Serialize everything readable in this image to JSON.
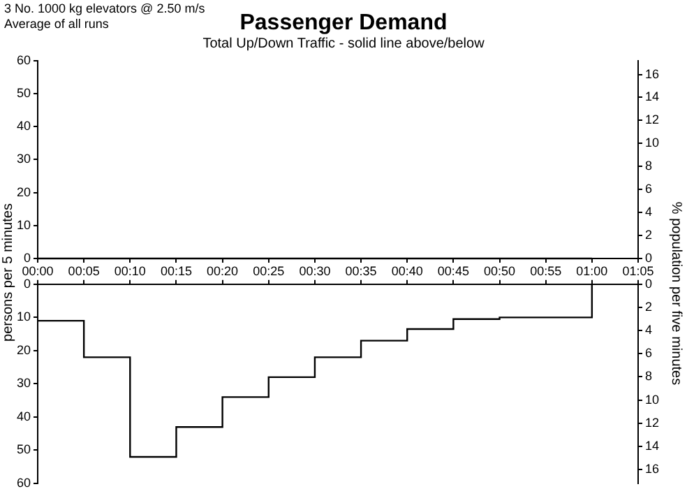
{
  "chart_data": [
    {
      "type": "step",
      "title": "Passenger Demand",
      "subtitle": "Total Up/Down Traffic - solid line above/below",
      "ylabel": "persons per 5 minutes",
      "y2label": "% population per five minutes",
      "annotations": [
        "3 No. 1000 kg elevators @ 2.50 m/s",
        "Average of all runs"
      ],
      "x": [
        0,
        5,
        10,
        15,
        20,
        25,
        30,
        35,
        40,
        45,
        50,
        55,
        60
      ],
      "series": [
        {
          "color": "#000000",
          "values": [
            0,
            0,
            0,
            0,
            0,
            0,
            0,
            0,
            0,
            0,
            0,
            0,
            0
          ]
        }
      ],
      "xlim": [
        0,
        65
      ],
      "xticks": [
        {
          "value": 0,
          "label": "00:00"
        },
        {
          "value": 5,
          "label": "00:05"
        },
        {
          "value": 10,
          "label": "00:10"
        },
        {
          "value": 15,
          "label": "00:15"
        },
        {
          "value": 20,
          "label": "00:20"
        },
        {
          "value": 25,
          "label": "00:25"
        },
        {
          "value": 30,
          "label": "00:30"
        },
        {
          "value": 35,
          "label": "00:35"
        },
        {
          "value": 40,
          "label": "00:40"
        },
        {
          "value": 45,
          "label": "00:45"
        },
        {
          "value": 50,
          "label": "00:50"
        },
        {
          "value": 55,
          "label": "00:55"
        },
        {
          "value": 60,
          "label": "01:00"
        },
        {
          "value": 65,
          "label": "01:05"
        }
      ],
      "ylim": [
        0,
        60
      ],
      "yticks": [
        0,
        10,
        20,
        30,
        40,
        50,
        60
      ],
      "y2lim": [
        0,
        17.2
      ],
      "y2ticks": [
        0,
        2,
        4,
        6,
        8,
        10,
        12,
        14,
        16
      ]
    },
    {
      "type": "step",
      "x": [
        0,
        5,
        10,
        15,
        20,
        25,
        30,
        35,
        40,
        45,
        50,
        55,
        60
      ],
      "series": [
        {
          "color": "#000000",
          "values": [
            11,
            22,
            52,
            43,
            34,
            28,
            22,
            17,
            13.5,
            10.5,
            10,
            10,
            0
          ]
        }
      ],
      "xlim": [
        0,
        65
      ],
      "xticks": [
        {
          "value": 0,
          "label": null
        },
        {
          "value": 5,
          "label": null
        },
        {
          "value": 10,
          "label": null
        },
        {
          "value": 15,
          "label": null
        },
        {
          "value": 20,
          "label": null
        },
        {
          "value": 25,
          "label": null
        },
        {
          "value": 30,
          "label": null
        },
        {
          "value": 35,
          "label": null
        },
        {
          "value": 40,
          "label": null
        },
        {
          "value": 45,
          "label": null
        },
        {
          "value": 50,
          "label": null
        },
        {
          "value": 55,
          "label": null
        },
        {
          "value": 60,
          "label": null
        },
        {
          "value": 65,
          "label": null
        }
      ],
      "ylim": [
        60,
        0
      ],
      "yticks": [
        0,
        10,
        20,
        30,
        40,
        50,
        60
      ],
      "y2lim": [
        17.2,
        0
      ],
      "y2ticks": [
        0,
        2,
        4,
        6,
        8,
        10,
        12,
        14,
        16
      ],
      "tick_labels": "y"
    }
  ]
}
